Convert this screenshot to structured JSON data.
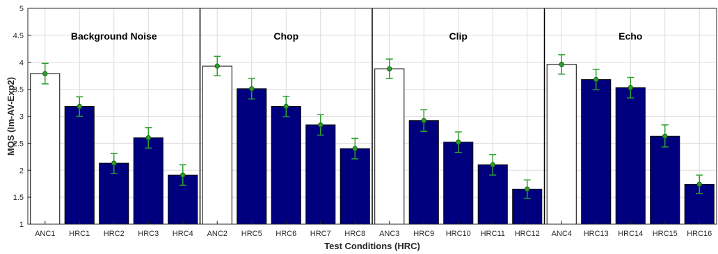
{
  "chart_data": {
    "type": "bar",
    "xlabel": "Test Conditions (HRC)",
    "ylabel": "MQS (Im-AV-Exp2)",
    "ylim": [
      1,
      5
    ],
    "yticks": [
      1,
      1.5,
      2,
      2.5,
      3,
      3.5,
      4,
      4.5,
      5
    ],
    "grid": true,
    "categories": [
      "ANC1",
      "HRC1",
      "HRC2",
      "HRC3",
      "HRC4",
      "ANC2",
      "HRC5",
      "HRC6",
      "HRC7",
      "HRC8",
      "ANC3",
      "HRC9",
      "HRC10",
      "HRC11",
      "HRC12",
      "ANC4",
      "HRC13",
      "HRC14",
      "HRC15",
      "HRC16"
    ],
    "values": [
      3.79,
      3.18,
      2.13,
      2.6,
      1.91,
      3.93,
      3.51,
      3.18,
      2.84,
      2.4,
      3.88,
      2.92,
      2.52,
      2.1,
      1.65,
      3.96,
      3.68,
      3.53,
      2.63,
      1.74
    ],
    "error_low": [
      3.6,
      3.0,
      1.94,
      2.41,
      1.72,
      3.75,
      3.32,
      2.99,
      2.65,
      2.21,
      3.7,
      2.72,
      2.33,
      1.91,
      1.48,
      3.78,
      3.49,
      3.34,
      2.43,
      1.57
    ],
    "error_high": [
      3.98,
      3.36,
      2.31,
      2.79,
      2.1,
      4.11,
      3.7,
      3.37,
      3.03,
      2.59,
      4.06,
      3.12,
      2.71,
      2.29,
      1.82,
      4.14,
      3.87,
      3.72,
      2.84,
      1.91
    ],
    "groups": [
      {
        "label": "Background Noise",
        "start": 0,
        "end": 4
      },
      {
        "label": "Chop",
        "start": 5,
        "end": 9
      },
      {
        "label": "Clip",
        "start": 10,
        "end": 14
      },
      {
        "label": "Echo",
        "start": 15,
        "end": 19
      }
    ],
    "colors": {
      "anchor_fill": "#ffffff",
      "hrc_fill": "#00007f",
      "bar_stroke": "#000000",
      "error": "#2ca02c",
      "marker_fill": "#2ca02c",
      "grid": "#dcdcdc"
    }
  }
}
